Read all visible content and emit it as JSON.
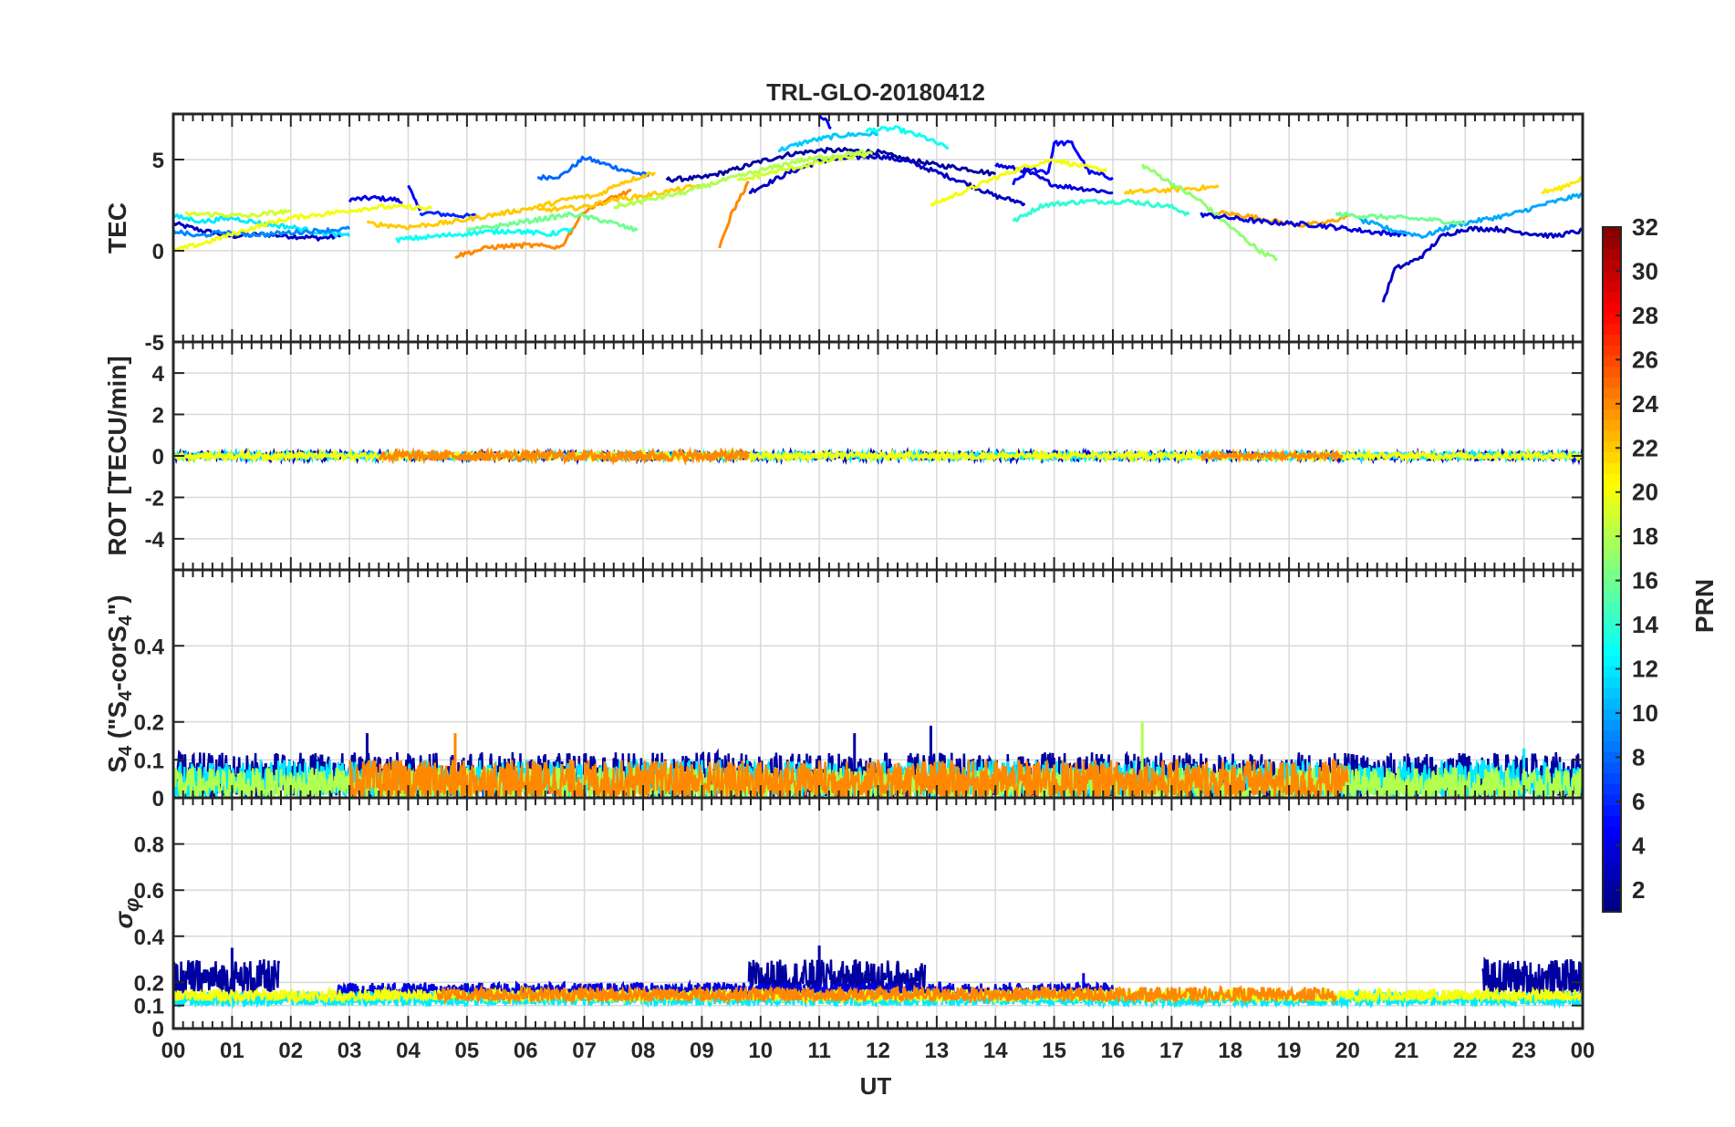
{
  "chart_data": {
    "title": "TRL-GLO-20180412",
    "type": "line",
    "xlabel": "UT",
    "x_range": [
      0,
      24
    ],
    "x_ticks": [
      "00",
      "01",
      "02",
      "03",
      "04",
      "05",
      "06",
      "07",
      "08",
      "09",
      "10",
      "11",
      "12",
      "13",
      "14",
      "15",
      "16",
      "17",
      "18",
      "19",
      "20",
      "21",
      "22",
      "23",
      "00"
    ],
    "grid": true,
    "colorbar": {
      "label": "PRN",
      "range": [
        1,
        32
      ],
      "ticks": [
        "2",
        "4",
        "6",
        "8",
        "10",
        "12",
        "14",
        "16",
        "18",
        "20",
        "22",
        "24",
        "26",
        "28",
        "30",
        "32"
      ],
      "colormap": "jet",
      "position": "right"
    },
    "panels": [
      {
        "id": "tec",
        "ylabel": "TEC",
        "ylim": [
          -5,
          7.5
        ],
        "yticks": [
          "-5",
          "0",
          "5"
        ],
        "series": [
          {
            "prn": 3,
            "x": [
              0,
              0.5,
              1,
              1.5,
              2,
              2.5,
              2.85
            ],
            "y": [
              1.5,
              1.1,
              0.8,
              0.9,
              0.8,
              0.7,
              0.8
            ]
          },
          {
            "prn": 4,
            "x": [
              3,
              3.4,
              3.8,
              3.9
            ],
            "y": [
              2.8,
              2.9,
              2.8,
              2.6
            ]
          },
          {
            "prn": 5,
            "x": [
              4.0,
              4.1,
              4.2
            ],
            "y": [
              3.7,
              2.8,
              2.2
            ]
          },
          {
            "prn": 6,
            "x": [
              4.2,
              4.6,
              5.0,
              5.2
            ],
            "y": [
              2.1,
              2.0,
              1.9,
              1.9
            ]
          },
          {
            "prn": 8,
            "x": [
              6.2,
              6.6,
              7.0,
              7.3,
              7.7,
              8.1
            ],
            "y": [
              4.0,
              4.1,
              5.1,
              4.8,
              4.4,
              4.1
            ]
          },
          {
            "prn": 2,
            "x": [
              8.4,
              9.0,
              9.5,
              10.0,
              10.5,
              11.0,
              11.5,
              12.0,
              12.5,
              13.0,
              13.5,
              14.0
            ],
            "y": [
              3.9,
              4.0,
              4.4,
              4.9,
              5.3,
              5.5,
              5.5,
              5.4,
              5.0,
              4.7,
              4.5,
              4.2
            ]
          },
          {
            "prn": 4,
            "x": [
              11.0,
              11.1,
              11.2
            ],
            "y": [
              7.5,
              7.2,
              6.7
            ]
          },
          {
            "prn": 3,
            "x": [
              9.8,
              10.5,
              11.0,
              11.5,
              12.0,
              12.5,
              13.0,
              13.5,
              14.0,
              14.5
            ],
            "y": [
              3.2,
              4.3,
              4.9,
              5.1,
              5.2,
              4.9,
              4.3,
              3.7,
              3.0,
              2.6
            ]
          },
          {
            "prn": 11,
            "x": [
              10.3,
              10.8,
              11.3,
              11.7,
              12.0
            ],
            "y": [
              5.5,
              6.0,
              6.3,
              6.4,
              6.4
            ]
          },
          {
            "prn": 13,
            "x": [
              11.8,
              12.3,
              12.8,
              13.2
            ],
            "y": [
              6.6,
              6.7,
              6.2,
              5.6
            ]
          },
          {
            "prn": 5,
            "x": [
              14.3,
              14.6,
              14.9,
              15.0,
              15.3,
              15.6,
              16.0
            ],
            "y": [
              3.7,
              4.5,
              4.3,
              5.9,
              5.9,
              4.3,
              4.0
            ]
          },
          {
            "prn": 4,
            "x": [
              14.0,
              14.5,
              15.0,
              15.5,
              16.0
            ],
            "y": [
              4.7,
              4.4,
              3.6,
              3.4,
              3.2
            ]
          },
          {
            "prn": 14,
            "x": [
              14.3,
              14.8,
              15.5,
              16.3,
              17.0,
              17.3
            ],
            "y": [
              1.6,
              2.5,
              2.7,
              2.7,
              2.4,
              2.0
            ]
          },
          {
            "prn": 20,
            "x": [
              12.9,
              13.5,
              14.0,
              14.5,
              15.0,
              15.5,
              15.9
            ],
            "y": [
              2.5,
              3.3,
              4.0,
              4.6,
              5.0,
              4.6,
              4.4
            ]
          },
          {
            "prn": 22,
            "x": [
              16.2,
              16.8,
              17.3,
              17.8
            ],
            "y": [
              3.2,
              3.3,
              3.4,
              3.5
            ]
          },
          {
            "prn": 17,
            "x": [
              16.5,
              17.0,
              17.5,
              18.0,
              18.5,
              18.8
            ],
            "y": [
              4.7,
              3.7,
              2.7,
              1.3,
              0.0,
              -0.5
            ]
          },
          {
            "prn": 23,
            "x": [
              17.8,
              18.3,
              18.8,
              19.2,
              19.6,
              20.0
            ],
            "y": [
              2.1,
              1.9,
              1.6,
              1.4,
              1.5,
              1.9
            ]
          },
          {
            "prn": 4,
            "x": [
              17.5,
              18.5,
              19.5,
              20.5,
              21.0
            ],
            "y": [
              2.0,
              1.6,
              1.4,
              1.0,
              0.9
            ]
          },
          {
            "prn": 3,
            "x": [
              20.6,
              20.8,
              21.1,
              21.3,
              21.6,
              22.0,
              22.5,
              23.0,
              23.5,
              24.0
            ],
            "y": [
              -2.8,
              -1.0,
              -0.6,
              -0.2,
              0.8,
              1.2,
              1.2,
              1.0,
              0.8,
              1.1
            ]
          },
          {
            "prn": 10,
            "x": [
              20.2,
              20.8,
              21.3,
              21.8,
              22.3,
              22.8,
              23.3,
              24.0
            ],
            "y": [
              1.7,
              1.1,
              0.8,
              1.4,
              1.7,
              2.0,
              2.5,
              3.1
            ]
          },
          {
            "prn": 16,
            "x": [
              19.8,
              20.3,
              20.9,
              21.4,
              22.0
            ],
            "y": [
              2.0,
              1.9,
              1.8,
              1.7,
              1.5
            ]
          },
          {
            "prn": 21,
            "x": [
              23.3,
              23.6,
              24.0
            ],
            "y": [
              3.2,
              3.4,
              4.0
            ]
          },
          {
            "prn": 12,
            "x": [
              0,
              0.5,
              1.0,
              1.5,
              2.0,
              2.5,
              3.0
            ],
            "y": [
              1.9,
              1.6,
              1.8,
              1.5,
              1.3,
              1.0,
              0.8
            ]
          },
          {
            "prn": 9,
            "x": [
              0,
              0.4,
              0.8,
              1.2,
              1.6,
              2.0,
              2.5,
              3.0
            ],
            "y": [
              1.1,
              0.8,
              1.0,
              0.9,
              0.9,
              1.0,
              1.1,
              1.2
            ]
          },
          {
            "prn": 20,
            "x": [
              0,
              0.5,
              1.0,
              1.5,
              2.0,
              2.5,
              3.0,
              3.5,
              4.0,
              4.4
            ],
            "y": [
              0.0,
              0.4,
              0.9,
              1.4,
              1.8,
              2.0,
              2.2,
              2.4,
              2.4,
              2.3
            ]
          },
          {
            "prn": 19,
            "x": [
              0.2,
              0.7,
              1.3,
              2.0
            ],
            "y": [
              2.0,
              2.0,
              1.9,
              2.2
            ]
          },
          {
            "prn": 22,
            "x": [
              3.3,
              4.0,
              4.8,
              5.5,
              6.2,
              6.8,
              7.2,
              7.6,
              8.2
            ],
            "y": [
              1.5,
              1.3,
              1.6,
              2.0,
              2.4,
              2.9,
              3.0,
              3.7,
              4.3
            ]
          },
          {
            "prn": 24,
            "x": [
              4.8,
              5.4,
              6.0,
              6.6,
              7.0,
              7.4,
              7.8
            ],
            "y": [
              -0.3,
              0.2,
              0.3,
              0.2,
              2.2,
              2.8,
              3.3
            ]
          },
          {
            "prn": 22,
            "x": [
              6.2,
              6.6,
              7.0,
              7.5,
              8.0,
              8.5,
              9.0
            ],
            "y": [
              2.2,
              2.3,
              2.4,
              2.8,
              3.0,
              3.3,
              3.6
            ]
          },
          {
            "prn": 24,
            "x": [
              9.3,
              9.5,
              9.7,
              9.8
            ],
            "y": [
              0.1,
              2.0,
              3.2,
              3.8
            ]
          },
          {
            "prn": 13,
            "x": [
              3.8,
              4.5,
              5.2,
              5.8,
              6.4,
              6.8
            ],
            "y": [
              0.6,
              0.8,
              1.0,
              1.1,
              0.9,
              1.2
            ]
          },
          {
            "prn": 16,
            "x": [
              5.0,
              5.6,
              6.2,
              6.8,
              7.4,
              7.9
            ],
            "y": [
              1.1,
              1.4,
              1.7,
              2.0,
              1.6,
              1.1
            ]
          },
          {
            "prn": 18,
            "x": [
              7.5,
              8.1,
              8.7,
              9.3,
              9.9,
              10.6,
              11.2,
              11.8
            ],
            "y": [
              2.4,
              2.8,
              3.2,
              3.8,
              4.3,
              4.9,
              5.2,
              5.4
            ]
          },
          {
            "prn": 19,
            "x": [
              9.6,
              10.2,
              10.8,
              11.4,
              11.9
            ],
            "y": [
              3.8,
              4.3,
              4.7,
              5.1,
              5.3
            ]
          }
        ]
      },
      {
        "id": "rot",
        "ylabel": "ROT [TECU/min]",
        "ylim": [
          -5.5,
          5.5
        ],
        "yticks": [
          "-4",
          "-2",
          "0",
          "2",
          "4"
        ],
        "series_note": "all PRNs fluctuate within about ±0.3 TECU/min around 0 for the whole day",
        "series": [
          {
            "prn": 3,
            "x": [
              0,
              24
            ],
            "y": [
              0,
              0
            ],
            "amplitude": 0.2
          },
          {
            "prn": 12,
            "x": [
              0,
              24
            ],
            "y": [
              0,
              0
            ],
            "amplitude": 0.15
          },
          {
            "prn": 20,
            "x": [
              0,
              24
            ],
            "y": [
              0,
              0
            ],
            "amplitude": 0.15
          },
          {
            "prn": 24,
            "x": [
              3.5,
              9.8
            ],
            "y": [
              0,
              0
            ],
            "amplitude": 0.25
          },
          {
            "prn": 24,
            "x": [
              17.5,
              19.9
            ],
            "y": [
              0,
              0
            ],
            "amplitude": 0.15
          }
        ]
      },
      {
        "id": "s4",
        "ylabel": "S4 (\"S4-corS4\")",
        "ylabel_parts": {
          "base": "S",
          "sub": "4",
          "middle": " (\"S",
          "sub2": "4",
          "tail": "-corS",
          "sub3": "4",
          "end": "\")"
        },
        "ylim": [
          0,
          0.6
        ],
        "yticks": [
          "0",
          "0.1",
          "0.2",
          "0.4"
        ],
        "series_note": "dense noisy band mostly between 0.02 and 0.12 with peaks up to about 0.2",
        "series": [
          {
            "prn": 2,
            "x": [
              0,
              24
            ],
            "band": [
              0.0,
              0.12
            ],
            "peaks": [
              [
                12.9,
                0.19
              ],
              [
                11.6,
                0.17
              ],
              [
                3.3,
                0.17
              ]
            ]
          },
          {
            "prn": 12,
            "x": [
              0,
              24
            ],
            "band": [
              0.0,
              0.1
            ],
            "peaks": [
              [
                23.0,
                0.13
              ]
            ]
          },
          {
            "prn": 18,
            "x": [
              0,
              24
            ],
            "band": [
              0.0,
              0.08
            ],
            "peaks": [
              [
                16.5,
                0.2
              ]
            ]
          },
          {
            "prn": 24,
            "x": [
              3.0,
              20.0
            ],
            "band": [
              0.0,
              0.1
            ],
            "peaks": [
              [
                4.8,
                0.17
              ]
            ]
          }
        ]
      },
      {
        "id": "sigma_phi",
        "ylabel": "σφ",
        "ylabel_parts": {
          "base": "σ",
          "sub": "φ"
        },
        "ylim": [
          0,
          1
        ],
        "yticks": [
          "0",
          "0.1",
          "0.2",
          "0.4",
          "0.6",
          "0.8"
        ],
        "series_note": "dense band between 0.1 and 0.2; elevated PRN 2 segments reach about 0.35",
        "series": [
          {
            "prn": 2,
            "x": [
              0,
              1.8
            ],
            "band": [
              0.15,
              0.3
            ],
            "peaks": [
              [
                1.0,
                0.35
              ]
            ]
          },
          {
            "prn": 2,
            "x": [
              9.8,
              12.8
            ],
            "band": [
              0.16,
              0.3
            ],
            "peaks": [
              [
                11.0,
                0.36
              ]
            ]
          },
          {
            "prn": 2,
            "x": [
              22.3,
              24.0
            ],
            "band": [
              0.15,
              0.3
            ],
            "peaks": [
              [
                23.8,
                0.3
              ]
            ]
          },
          {
            "prn": 4,
            "x": [
              2.8,
              16.0
            ],
            "band": [
              0.14,
              0.2
            ],
            "peaks": [
              [
                15.5,
                0.24
              ]
            ]
          },
          {
            "prn": 12,
            "x": [
              0,
              24
            ],
            "band": [
              0.1,
              0.16
            ],
            "peaks": []
          },
          {
            "prn": 20,
            "x": [
              0,
              24
            ],
            "band": [
              0.12,
              0.17
            ],
            "peaks": []
          },
          {
            "prn": 24,
            "x": [
              4.5,
              19.8
            ],
            "band": [
              0.12,
              0.18
            ],
            "peaks": []
          }
        ]
      }
    ]
  }
}
